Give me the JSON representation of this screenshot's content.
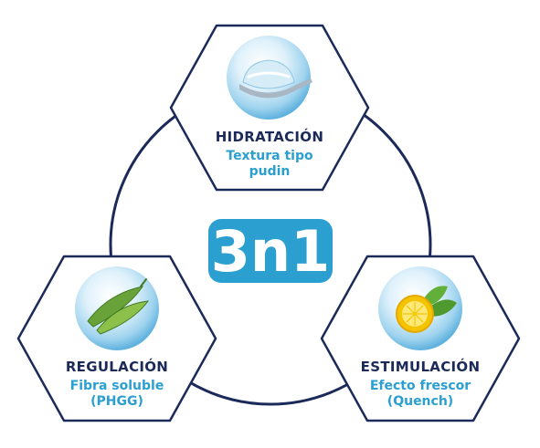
{
  "center_logo": {
    "text": "3n1",
    "color": "#2a9fd0"
  },
  "colors": {
    "navy": "#1c2a5a",
    "blue": "#2a9fd0"
  },
  "nodes": [
    {
      "id": "hidratacion",
      "title": "HIDRATACIÓN",
      "subtitle_lines": [
        "Textura tipo",
        "pudin"
      ],
      "icon": "spoon-pudding-icon"
    },
    {
      "id": "regulacion",
      "title": "REGULACIÓN",
      "subtitle_lines": [
        "Fibra soluble",
        "(PHGG)"
      ],
      "icon": "pea-pod-icon"
    },
    {
      "id": "estimulacion",
      "title": "ESTIMULACIÓN",
      "subtitle_lines": [
        "Efecto frescor",
        "(Quench)"
      ],
      "icon": "lemon-icon"
    }
  ]
}
